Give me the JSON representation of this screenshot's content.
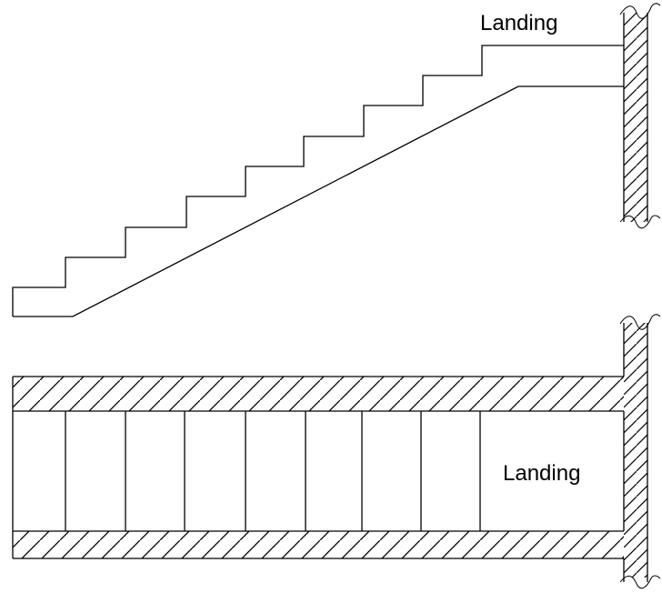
{
  "section": {
    "landing_label": "Landing"
  },
  "plan": {
    "landing_label": "Landing"
  }
}
